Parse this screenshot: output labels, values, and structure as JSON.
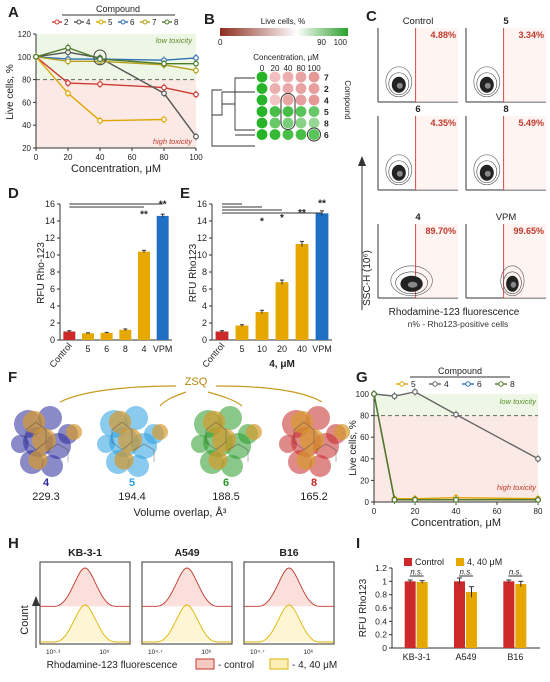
{
  "figure": {
    "panels": {
      "A": {
        "letter": "A",
        "legend_title": "Compound",
        "legend_items": [
          "2",
          "4",
          "5",
          "6",
          "7",
          "8"
        ],
        "legend_colors": [
          "#cc3a32",
          "#555555",
          "#e0a500",
          "#2e6fb5",
          "#b5a020",
          "#4f7a2a"
        ],
        "ylabel": "Live cells, %",
        "xlabel": "Concentration, μM",
        "low_label": "low toxicity",
        "high_label": "high toxicity"
      },
      "B": {
        "letter": "B",
        "scale_title": "Live cells, %",
        "scale_ticks": [
          "0",
          "90",
          "100"
        ],
        "conc_label": "Concentration, μM",
        "conc_ticks": [
          "0",
          "20",
          "40",
          "80",
          "100"
        ],
        "compounds_label": "Compound",
        "rows": [
          "7",
          "2",
          "4",
          "5",
          "8",
          "6"
        ]
      },
      "C": {
        "letter": "C",
        "ylabel": "SSC-H (10⁶)",
        "xlabel": "Rhodamine-123 fluorescence",
        "footnote": "n% - Rho123-positive cells",
        "plots": [
          {
            "label": "Control",
            "pct": "4.88%"
          },
          {
            "label": "5",
            "pct": "3.34%"
          },
          {
            "label": "6",
            "pct": "4.35%"
          },
          {
            "label": "8",
            "pct": "5.49%"
          },
          {
            "label": "4",
            "pct": "89.70%"
          },
          {
            "label": "VPM",
            "pct": "99.65%"
          }
        ]
      },
      "D": {
        "letter": "D",
        "ylabel": "RFU Rho-123",
        "sig": [
          "**",
          "**"
        ]
      },
      "E": {
        "letter": "E",
        "ylabel": "RFU Rho123",
        "xlabel": "4, μM",
        "sig": [
          "*",
          "*",
          "**",
          "**"
        ]
      },
      "F": {
        "letter": "F",
        "zsq": "ZSQ",
        "xlabel": "Volume overlap, Å³",
        "molecules": [
          {
            "id": "4",
            "value": "229.3",
            "color": "#2a2a9a"
          },
          {
            "id": "5",
            "value": "194.4",
            "color": "#2a9ee0"
          },
          {
            "id": "6",
            "value": "188.5",
            "color": "#2a9a2a"
          },
          {
            "id": "8",
            "value": "165.2",
            "color": "#c62828"
          }
        ]
      },
      "G": {
        "letter": "G",
        "legend_title": "Compound",
        "legend_items": [
          "5",
          "4",
          "6",
          "8"
        ],
        "ylabel": "Live cells, %",
        "xlabel": "Concentration, μM",
        "low_label": "low toxicity",
        "high_label": "high toxicity"
      },
      "H": {
        "letter": "H",
        "xlabel": "Rhodamine-123 fluorescence",
        "ylabel": "Count",
        "plots": [
          {
            "title": "KB-3-1",
            "ticks": [
              "10⁵·³",
              "10⁶"
            ]
          },
          {
            "title": "A549",
            "ticks": [
              "10⁴·⁷",
              "10⁶"
            ]
          },
          {
            "title": "B16",
            "ticks": [
              "10⁴·⁷",
              "10⁶"
            ]
          }
        ],
        "legend": [
          "- control",
          "- 4, 40 μM"
        ]
      },
      "I": {
        "letter": "I",
        "ylabel": "RFU Rho123",
        "legend": [
          "Control",
          "4, 40 μM"
        ],
        "ns": "n.s."
      }
    }
  },
  "chart_data": [
    {
      "id": "A",
      "type": "line",
      "x": [
        0,
        20,
        40,
        60,
        80,
        100
      ],
      "xlim": [
        0,
        100
      ],
      "ylim": [
        20,
        120
      ],
      "threshold": 80,
      "xticks": [
        0,
        20,
        40,
        60,
        80,
        100
      ],
      "yticks": [
        20,
        40,
        60,
        80,
        100,
        120
      ],
      "series": [
        {
          "name": "2",
          "color": "#cc3a32",
          "values": [
            100,
            77,
            76,
            null,
            73,
            67
          ]
        },
        {
          "name": "4",
          "color": "#555555",
          "values": [
            100,
            104,
            99,
            null,
            68,
            30
          ]
        },
        {
          "name": "5",
          "color": "#e0a500",
          "values": [
            100,
            68,
            44,
            null,
            45,
            null
          ]
        },
        {
          "name": "6",
          "color": "#2e6fb5",
          "values": [
            100,
            98,
            98,
            null,
            97,
            99
          ]
        },
        {
          "name": "7",
          "color": "#b5a020",
          "values": [
            100,
            96,
            96,
            null,
            93,
            88
          ]
        },
        {
          "name": "8",
          "color": "#4f7a2a",
          "values": [
            100,
            108,
            98,
            null,
            94,
            94
          ]
        }
      ]
    },
    {
      "id": "B",
      "type": "heatmap",
      "rows": [
        "7",
        "2",
        "4",
        "5",
        "8",
        "6"
      ],
      "columns": [
        "0",
        "20",
        "40",
        "80",
        "100"
      ],
      "colorscale": [
        "#8b2d1e",
        "#ffffff",
        "#2aa02a"
      ],
      "values": [
        [
          100,
          55,
          40,
          30,
          20
        ],
        [
          100,
          40,
          35,
          30,
          25
        ],
        [
          100,
          60,
          30,
          25,
          20
        ],
        [
          100,
          98,
          98,
          97,
          96
        ],
        [
          100,
          96,
          95,
          94,
          93
        ],
        [
          100,
          99,
          98,
          98,
          97
        ]
      ]
    },
    {
      "id": "D",
      "type": "bar",
      "categories": [
        "Control",
        "5",
        "6",
        "8",
        "4",
        "VPM"
      ],
      "values": [
        1.0,
        0.8,
        0.85,
        1.2,
        10.4,
        14.6
      ],
      "errors": [
        0.1,
        0.05,
        0.05,
        0.1,
        0.15,
        0.2
      ],
      "ylim": [
        0,
        16
      ],
      "yticks": [
        0,
        2,
        4,
        6,
        8,
        10,
        12,
        14,
        16
      ],
      "colors": [
        "#cc2a2a",
        "#e6a800",
        "#e6a800",
        "#e6a800",
        "#e6a800",
        "#1f6fc5"
      ]
    },
    {
      "id": "E",
      "type": "bar",
      "categories": [
        "Control",
        "5",
        "10",
        "20",
        "40",
        "VPM"
      ],
      "values": [
        1.0,
        1.7,
        3.3,
        6.8,
        11.3,
        14.9
      ],
      "errors": [
        0.1,
        0.1,
        0.2,
        0.25,
        0.3,
        0.3
      ],
      "ylim": [
        0,
        16
      ],
      "yticks": [
        0,
        2,
        4,
        6,
        8,
        10,
        12,
        14,
        16
      ],
      "colors": [
        "#cc2a2a",
        "#e6a800",
        "#e6a800",
        "#e6a800",
        "#e6a800",
        "#1f6fc5"
      ]
    },
    {
      "id": "G",
      "type": "line",
      "x": [
        0,
        10,
        20,
        40,
        80
      ],
      "xlim": [
        0,
        80
      ],
      "ylim": [
        0,
        100
      ],
      "threshold": 80,
      "xticks": [
        0,
        20,
        40,
        60,
        80
      ],
      "yticks": [
        0,
        20,
        40,
        60,
        80,
        100
      ],
      "series": [
        {
          "name": "5",
          "color": "#e0a500",
          "values": [
            100,
            3,
            3,
            4,
            3
          ]
        },
        {
          "name": "4",
          "color": "#666666",
          "values": [
            100,
            98,
            102,
            81,
            40
          ]
        },
        {
          "name": "6",
          "color": "#2e6fb5",
          "values": [
            100,
            2,
            2,
            2,
            2
          ]
        },
        {
          "name": "8",
          "color": "#4f7a2a",
          "values": [
            100,
            2,
            2,
            2,
            2
          ]
        }
      ]
    },
    {
      "id": "I",
      "type": "bar",
      "categories": [
        "KB-3-1",
        "A549",
        "B16"
      ],
      "ylim": [
        0,
        1.2
      ],
      "yticks": [
        0,
        0.2,
        0.4,
        0.6,
        0.8,
        1,
        1.2
      ],
      "series": [
        {
          "name": "Control",
          "color": "#cc2a2a",
          "values": [
            1.0,
            1.0,
            1.0
          ],
          "errors": [
            0.02,
            0.05,
            0.02
          ]
        },
        {
          "name": "4, 40 μM",
          "color": "#e6a800",
          "values": [
            0.99,
            0.84,
            0.96
          ],
          "errors": [
            0.02,
            0.08,
            0.04
          ]
        }
      ]
    }
  ]
}
